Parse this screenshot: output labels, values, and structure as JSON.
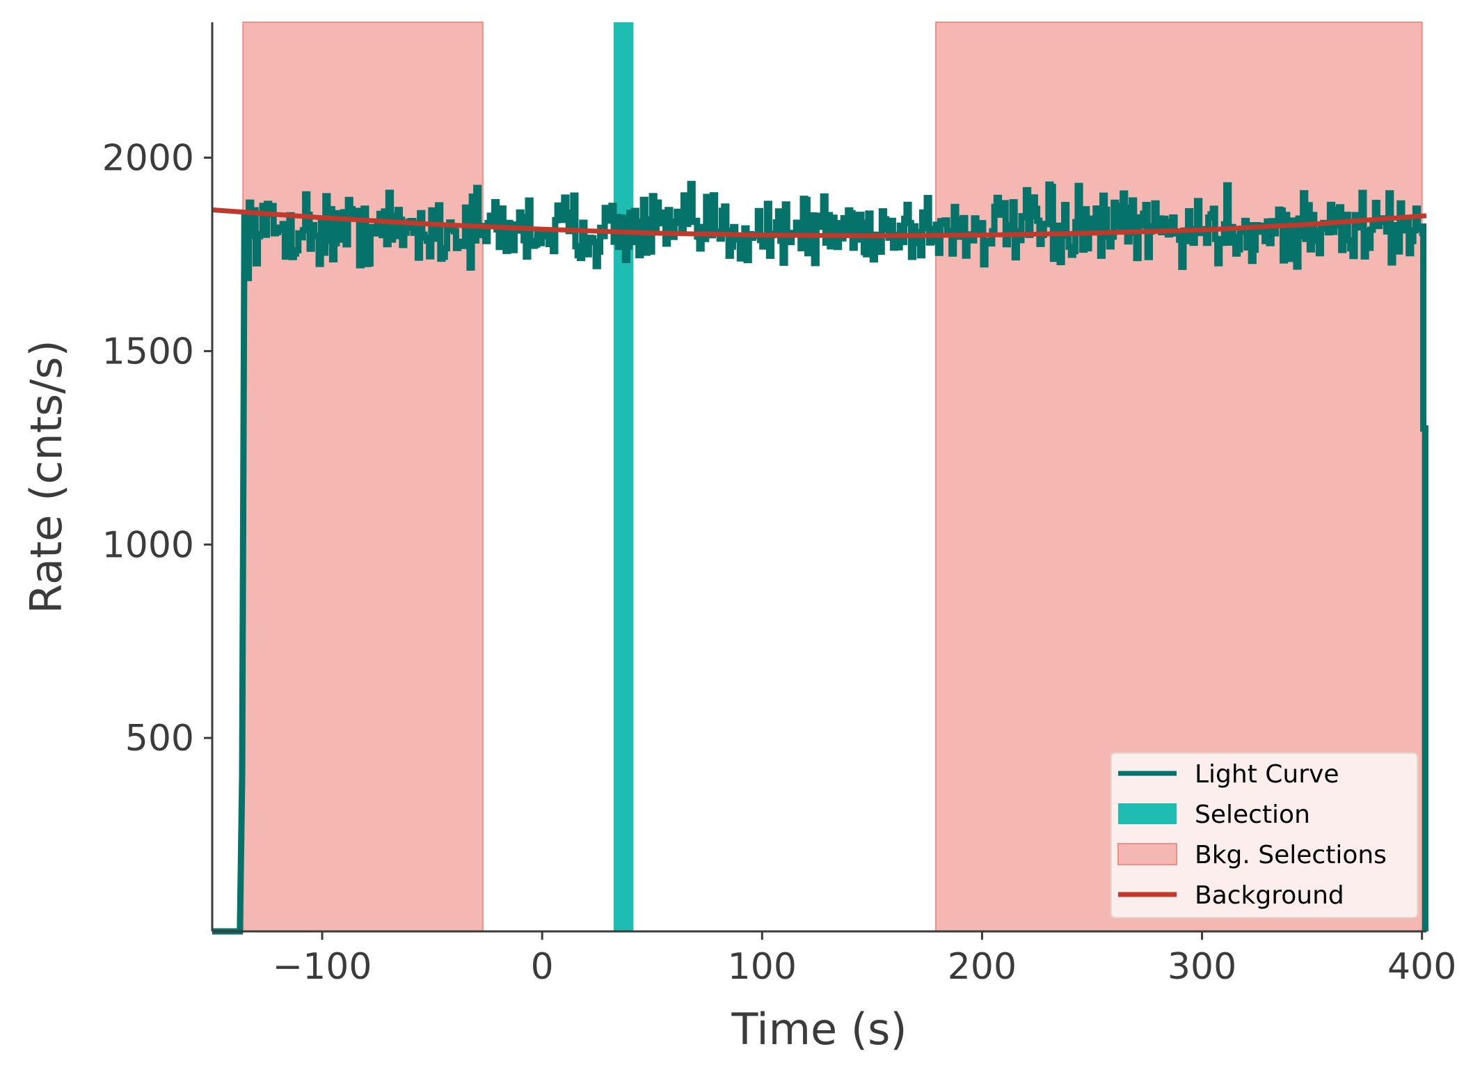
{
  "chart_data": {
    "type": "line",
    "xlabel": "Time (s)",
    "ylabel": "Rate (cnts/s)",
    "xlim": [
      -150,
      402
    ],
    "ylim": [
      0,
      2350
    ],
    "xticks": [
      -100,
      0,
      100,
      200,
      300,
      400
    ],
    "xtick_labels": [
      "−100",
      "0",
      "100",
      "200",
      "300",
      "400"
    ],
    "yticks": [
      500,
      1000,
      1500,
      2000
    ],
    "ytick_labels": [
      "500",
      "1000",
      "1500",
      "2000"
    ],
    "grid": false,
    "legend_position": "bottom-right",
    "colors": {
      "light_curve": "#06736a",
      "selection": "#1fbcb2",
      "bkg_selection": "#f5b7b1",
      "bkg_edge": "#ec8f89",
      "background": "#c0392b",
      "legend_bg": "#fbeeec",
      "axis": "#3b3b3b"
    },
    "series": [
      {
        "name": "Light Curve",
        "kind": "step",
        "x_start": -136.4,
        "bin_width": 1.024,
        "pre": [
          [
            -150,
            0
          ],
          [
            -137.4,
            0
          ],
          [
            -136.4,
            400
          ],
          [
            -135.4,
            1830
          ]
        ],
        "rate_mean": 1815,
        "rate_noise": 45,
        "post": [
          [
            400.6,
            1830
          ],
          [
            400.6,
            1300
          ],
          [
            401.5,
            1300
          ],
          [
            401.5,
            0
          ]
        ]
      },
      {
        "name": "Selection",
        "kind": "span",
        "x": [
          32.5,
          41.5
        ]
      },
      {
        "name": "Bkg. Selections",
        "kind": "spans",
        "intervals": [
          [
            -136,
            -27
          ],
          [
            179,
            400
          ]
        ]
      },
      {
        "name": "Background",
        "kind": "line",
        "x": [
          -150,
          -100,
          -50,
          0,
          50,
          100,
          150,
          200,
          250,
          300,
          350,
          402
        ],
        "y": [
          1865,
          1845,
          1828,
          1815,
          1805,
          1800,
          1798,
          1800,
          1805,
          1813,
          1828,
          1850
        ]
      }
    ],
    "legend": [
      "Light Curve",
      "Selection",
      "Bkg. Selections",
      "Background"
    ]
  }
}
